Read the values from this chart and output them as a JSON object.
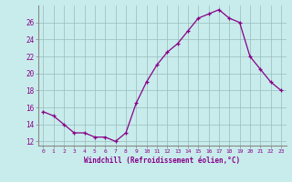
{
  "x": [
    0,
    1,
    2,
    3,
    4,
    5,
    6,
    7,
    8,
    9,
    10,
    11,
    12,
    13,
    14,
    15,
    16,
    17,
    18,
    19,
    20,
    21,
    22,
    23
  ],
  "y": [
    15.5,
    15.0,
    14.0,
    13.0,
    13.0,
    12.5,
    12.5,
    12.0,
    13.0,
    16.5,
    19.0,
    21.0,
    22.5,
    23.5,
    25.0,
    26.5,
    27.0,
    27.5,
    26.5,
    26.0,
    22.0,
    20.5,
    19.0,
    18.0
  ],
  "xlabel": "Windchill (Refroidissement éolien,°C)",
  "ylim": [
    11.5,
    28.0
  ],
  "yticks": [
    12,
    14,
    16,
    18,
    20,
    22,
    24,
    26
  ],
  "xticks": [
    0,
    1,
    2,
    3,
    4,
    5,
    6,
    7,
    8,
    9,
    10,
    11,
    12,
    13,
    14,
    15,
    16,
    17,
    18,
    19,
    20,
    21,
    22,
    23
  ],
  "line_color": "#880088",
  "marker_color": "#880088",
  "bg_color": "#c8ecec",
  "grid_color": "#99bbbb",
  "tick_label_color": "#880088",
  "xlabel_color": "#880088",
  "figsize": [
    3.2,
    2.0
  ],
  "dpi": 100
}
